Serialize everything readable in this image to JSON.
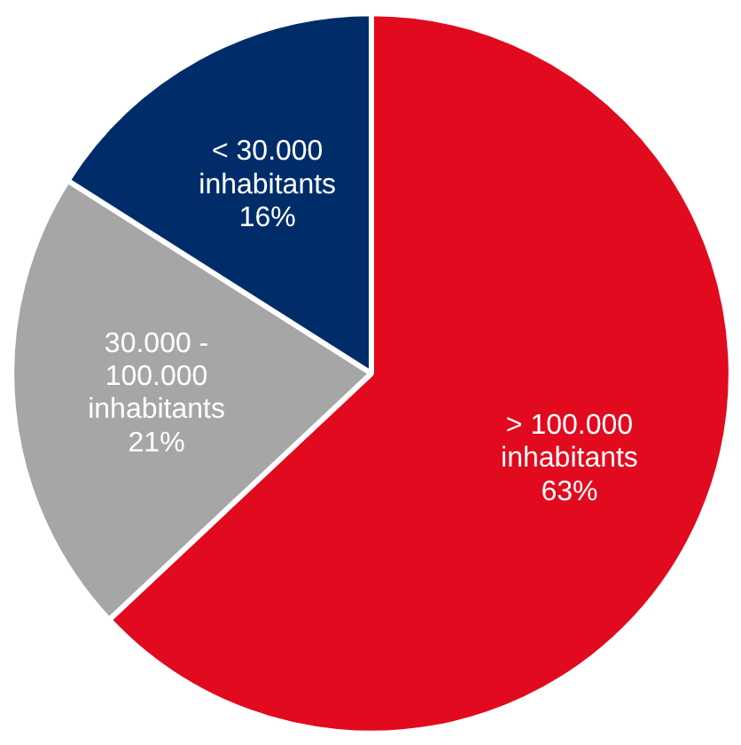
{
  "chart_data": {
    "type": "pie",
    "categories": [
      "> 100.000\ninhabitants",
      "30.000 -\n100.000\ninhabitants",
      "< 30.000\ninhabitants"
    ],
    "values": [
      63,
      21,
      16
    ],
    "value_labels": [
      "63%",
      "21%",
      "16%"
    ],
    "colors": [
      "#e20a1e",
      "#a6a6a6",
      "#002d6a"
    ],
    "legend": false
  }
}
